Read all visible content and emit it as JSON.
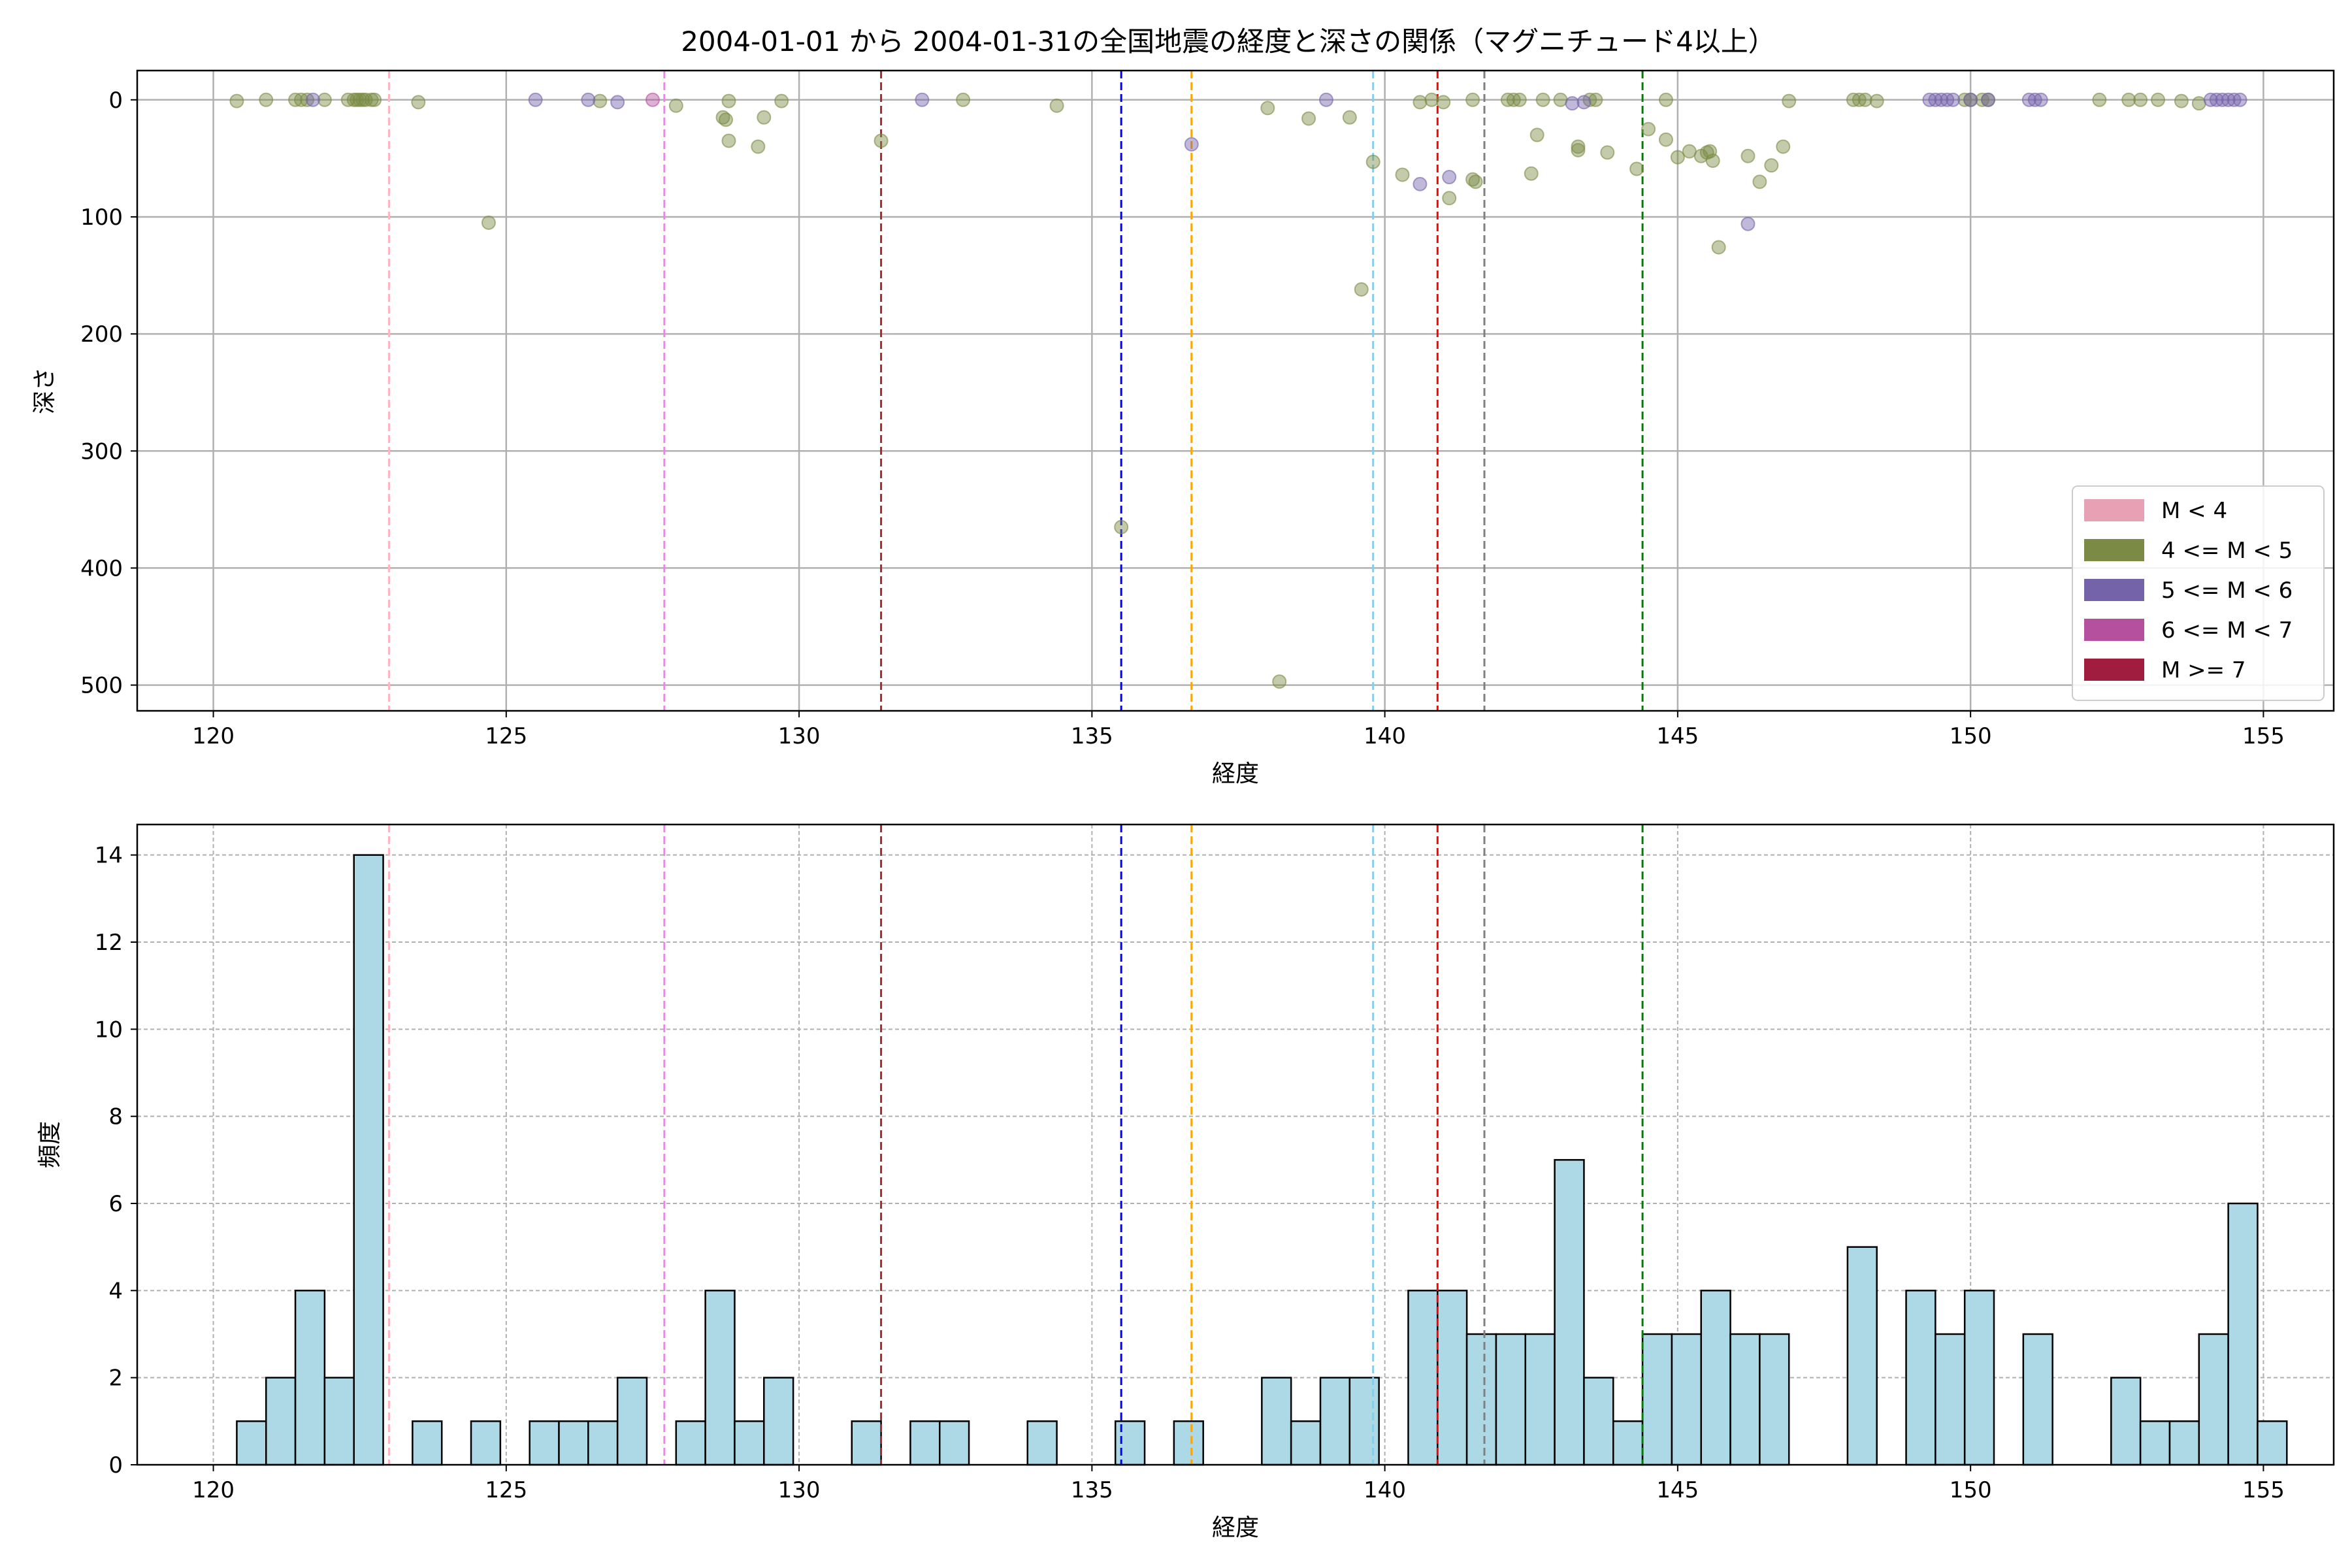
{
  "chart_data": [
    {
      "type": "scatter",
      "title": "2004-01-01 から 2004-01-31の全国地震の経度と深さの関係（マグニチュード4以上）",
      "xlabel": "経度",
      "ylabel": "深さ",
      "xlim": [
        118.7,
        156.2
      ],
      "ylim": [
        522,
        -25
      ],
      "y_inverted": true,
      "xticks": [
        120,
        125,
        130,
        135,
        140,
        145,
        150,
        155
      ],
      "yticks": [
        0,
        100,
        200,
        300,
        400,
        500
      ],
      "grid": true,
      "legend_position": "lower-right",
      "legend": [
        {
          "label": "M < 4",
          "color": "#e8a0b4"
        },
        {
          "label": "4 <= M < 5",
          "color": "#7b8b45"
        },
        {
          "label": "5 <= M < 6",
          "color": "#7563aa"
        },
        {
          "label": "6 <= M < 7",
          "color": "#b5509e"
        },
        {
          "label": "M >= 7",
          "color": "#a11d3f"
        }
      ],
      "vlines": [
        {
          "x": 123.0,
          "color": "#ffb6c1"
        },
        {
          "x": 127.7,
          "color": "#ee82ee"
        },
        {
          "x": 131.4,
          "color": "#a52a2a"
        },
        {
          "x": 135.5,
          "color": "#0000ff"
        },
        {
          "x": 136.7,
          "color": "#ffa500"
        },
        {
          "x": 139.8,
          "color": "#87ceeb"
        },
        {
          "x": 140.9,
          "color": "#ff0000"
        },
        {
          "x": 141.7,
          "color": "#808080"
        },
        {
          "x": 144.4,
          "color": "#008000"
        }
      ],
      "series": [
        {
          "color": "#7b8b45",
          "points": [
            [
              120.4,
              1
            ],
            [
              120.9,
              0
            ],
            [
              121.4,
              0
            ],
            [
              121.5,
              0
            ],
            [
              121.6,
              0
            ],
            [
              121.9,
              0
            ],
            [
              122.3,
              0
            ],
            [
              122.4,
              0
            ],
            [
              122.45,
              0
            ],
            [
              122.5,
              0
            ],
            [
              122.55,
              0
            ],
            [
              122.6,
              0
            ],
            [
              122.7,
              0
            ],
            [
              122.75,
              0
            ],
            [
              123.5,
              2
            ],
            [
              124.7,
              105
            ],
            [
              126.6,
              1
            ],
            [
              127.9,
              5
            ],
            [
              128.7,
              15
            ],
            [
              128.75,
              17
            ],
            [
              128.8,
              1
            ],
            [
              128.8,
              35
            ],
            [
              129.3,
              40
            ],
            [
              129.4,
              15
            ],
            [
              129.7,
              1
            ],
            [
              131.4,
              35
            ],
            [
              132.8,
              0
            ],
            [
              134.4,
              5
            ],
            [
              135.5,
              365
            ],
            [
              138.0,
              7
            ],
            [
              138.2,
              497
            ],
            [
              138.7,
              16
            ],
            [
              139.4,
              15
            ],
            [
              139.6,
              162
            ],
            [
              139.8,
              53
            ],
            [
              140.3,
              64
            ],
            [
              140.6,
              2
            ],
            [
              140.8,
              0
            ],
            [
              141.0,
              2
            ],
            [
              141.1,
              84
            ],
            [
              141.5,
              0
            ],
            [
              141.5,
              68
            ],
            [
              141.55,
              70
            ],
            [
              142.1,
              0
            ],
            [
              142.2,
              0
            ],
            [
              142.3,
              0
            ],
            [
              142.5,
              63
            ],
            [
              142.6,
              30
            ],
            [
              142.7,
              0
            ],
            [
              143.0,
              0
            ],
            [
              143.3,
              40
            ],
            [
              143.3,
              43
            ],
            [
              143.5,
              0
            ],
            [
              143.6,
              0
            ],
            [
              143.8,
              45
            ],
            [
              144.3,
              59
            ],
            [
              144.5,
              25
            ],
            [
              144.8,
              0
            ],
            [
              144.8,
              34
            ],
            [
              145.0,
              49
            ],
            [
              145.2,
              44
            ],
            [
              145.4,
              48
            ],
            [
              145.5,
              45
            ],
            [
              145.55,
              44
            ],
            [
              145.6,
              52
            ],
            [
              145.7,
              126
            ],
            [
              146.2,
              48
            ],
            [
              146.4,
              70
            ],
            [
              146.6,
              56
            ],
            [
              146.8,
              40
            ],
            [
              146.9,
              1
            ],
            [
              148.0,
              0
            ],
            [
              148.1,
              0
            ],
            [
              148.2,
              0
            ],
            [
              148.4,
              1
            ],
            [
              149.9,
              0
            ],
            [
              150.0,
              0
            ],
            [
              150.2,
              0
            ],
            [
              150.3,
              0
            ],
            [
              152.2,
              0
            ],
            [
              152.7,
              0
            ],
            [
              152.9,
              0
            ],
            [
              153.2,
              0
            ],
            [
              153.6,
              1
            ],
            [
              153.9,
              3
            ]
          ]
        },
        {
          "color": "#7563aa",
          "points": [
            [
              121.7,
              0
            ],
            [
              125.5,
              0
            ],
            [
              126.4,
              0
            ],
            [
              126.9,
              2
            ],
            [
              132.1,
              0
            ],
            [
              136.7,
              38
            ],
            [
              139.0,
              0
            ],
            [
              140.6,
              72
            ],
            [
              141.1,
              66
            ],
            [
              143.2,
              3
            ],
            [
              143.4,
              2
            ],
            [
              146.2,
              106
            ],
            [
              149.3,
              0
            ],
            [
              149.4,
              0
            ],
            [
              149.5,
              0
            ],
            [
              149.6,
              0
            ],
            [
              149.7,
              0
            ],
            [
              150.0,
              0
            ],
            [
              150.3,
              0
            ],
            [
              151.0,
              0
            ],
            [
              151.1,
              0
            ],
            [
              151.2,
              0
            ],
            [
              154.1,
              0
            ],
            [
              154.2,
              0
            ],
            [
              154.3,
              0
            ],
            [
              154.4,
              0
            ],
            [
              154.5,
              0
            ],
            [
              154.6,
              0
            ]
          ]
        },
        {
          "color": "#b5509e",
          "points": [
            [
              127.5,
              0
            ]
          ]
        }
      ]
    },
    {
      "type": "bar",
      "subtype": "histogram",
      "xlabel": "経度",
      "ylabel": "頻度",
      "xlim": [
        118.7,
        156.2
      ],
      "ylim": [
        0,
        14.7
      ],
      "xticks": [
        120,
        125,
        130,
        135,
        140,
        145,
        150,
        155
      ],
      "yticks": [
        0,
        2,
        4,
        6,
        8,
        10,
        12,
        14
      ],
      "grid": true,
      "bar_color": "#add8e6",
      "edge_color": "#000000",
      "bin_width": 0.5,
      "bins": [
        [
          120.4,
          1
        ],
        [
          120.9,
          2
        ],
        [
          121.4,
          4
        ],
        [
          121.9,
          2
        ],
        [
          122.4,
          14
        ],
        [
          123.4,
          1
        ],
        [
          124.4,
          1
        ],
        [
          125.4,
          1
        ],
        [
          125.9,
          1
        ],
        [
          126.4,
          1
        ],
        [
          126.9,
          2
        ],
        [
          127.9,
          1
        ],
        [
          128.4,
          4
        ],
        [
          128.9,
          1
        ],
        [
          129.4,
          2
        ],
        [
          130.9,
          1
        ],
        [
          131.9,
          1
        ],
        [
          132.4,
          1
        ],
        [
          133.9,
          1
        ],
        [
          135.4,
          1
        ],
        [
          136.4,
          1
        ],
        [
          137.9,
          2
        ],
        [
          138.4,
          1
        ],
        [
          138.9,
          2
        ],
        [
          139.4,
          2
        ],
        [
          140.4,
          4
        ],
        [
          140.9,
          4
        ],
        [
          141.4,
          3
        ],
        [
          141.9,
          3
        ],
        [
          142.4,
          3
        ],
        [
          142.9,
          7
        ],
        [
          143.4,
          2
        ],
        [
          143.9,
          1
        ],
        [
          144.4,
          3
        ],
        [
          144.9,
          3
        ],
        [
          145.4,
          4
        ],
        [
          145.9,
          3
        ],
        [
          146.4,
          3
        ],
        [
          147.9,
          5
        ],
        [
          148.9,
          4
        ],
        [
          149.4,
          3
        ],
        [
          149.9,
          4
        ],
        [
          150.9,
          3
        ],
        [
          152.4,
          2
        ],
        [
          152.9,
          1
        ],
        [
          153.4,
          1
        ],
        [
          153.9,
          3
        ],
        [
          154.4,
          6
        ],
        [
          154.9,
          1
        ]
      ],
      "vlines": [
        {
          "x": 123.0,
          "color": "#ffb6c1"
        },
        {
          "x": 127.7,
          "color": "#ee82ee"
        },
        {
          "x": 131.4,
          "color": "#a52a2a"
        },
        {
          "x": 135.5,
          "color": "#0000ff"
        },
        {
          "x": 136.7,
          "color": "#ffa500"
        },
        {
          "x": 139.8,
          "color": "#87ceeb"
        },
        {
          "x": 140.9,
          "color": "#ff0000"
        },
        {
          "x": 141.7,
          "color": "#808080"
        },
        {
          "x": 144.4,
          "color": "#008000"
        }
      ]
    }
  ]
}
